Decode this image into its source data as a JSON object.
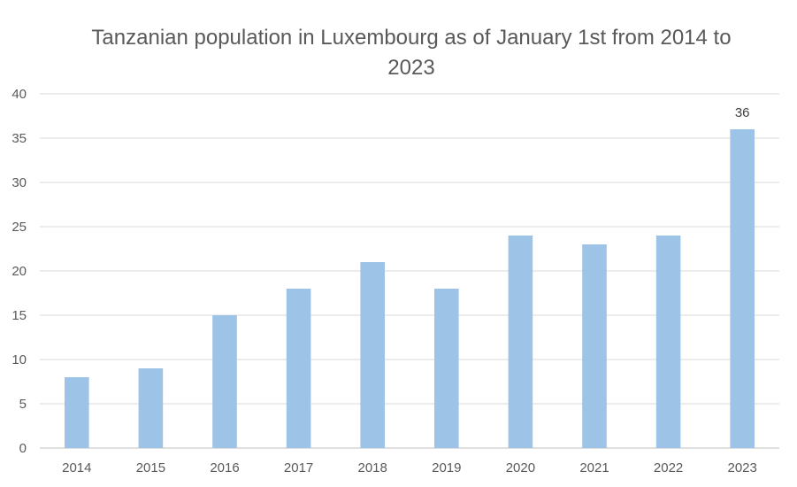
{
  "chart_data": {
    "type": "bar",
    "title": "Tanzanian population in Luxembourg as of January 1st from 2014 to 2023",
    "categories": [
      "2014",
      "2015",
      "2016",
      "2017",
      "2018",
      "2019",
      "2020",
      "2021",
      "2022",
      "2023"
    ],
    "values": [
      8,
      9,
      15,
      18,
      21,
      18,
      24,
      23,
      24,
      36
    ],
    "ylim": [
      0,
      40
    ],
    "yticks": [
      0,
      5,
      10,
      15,
      20,
      25,
      30,
      35,
      40
    ],
    "grid": true,
    "bar_color": "#9dc3e6",
    "data_labels": [
      {
        "category": "2023",
        "text": "36"
      }
    ]
  }
}
